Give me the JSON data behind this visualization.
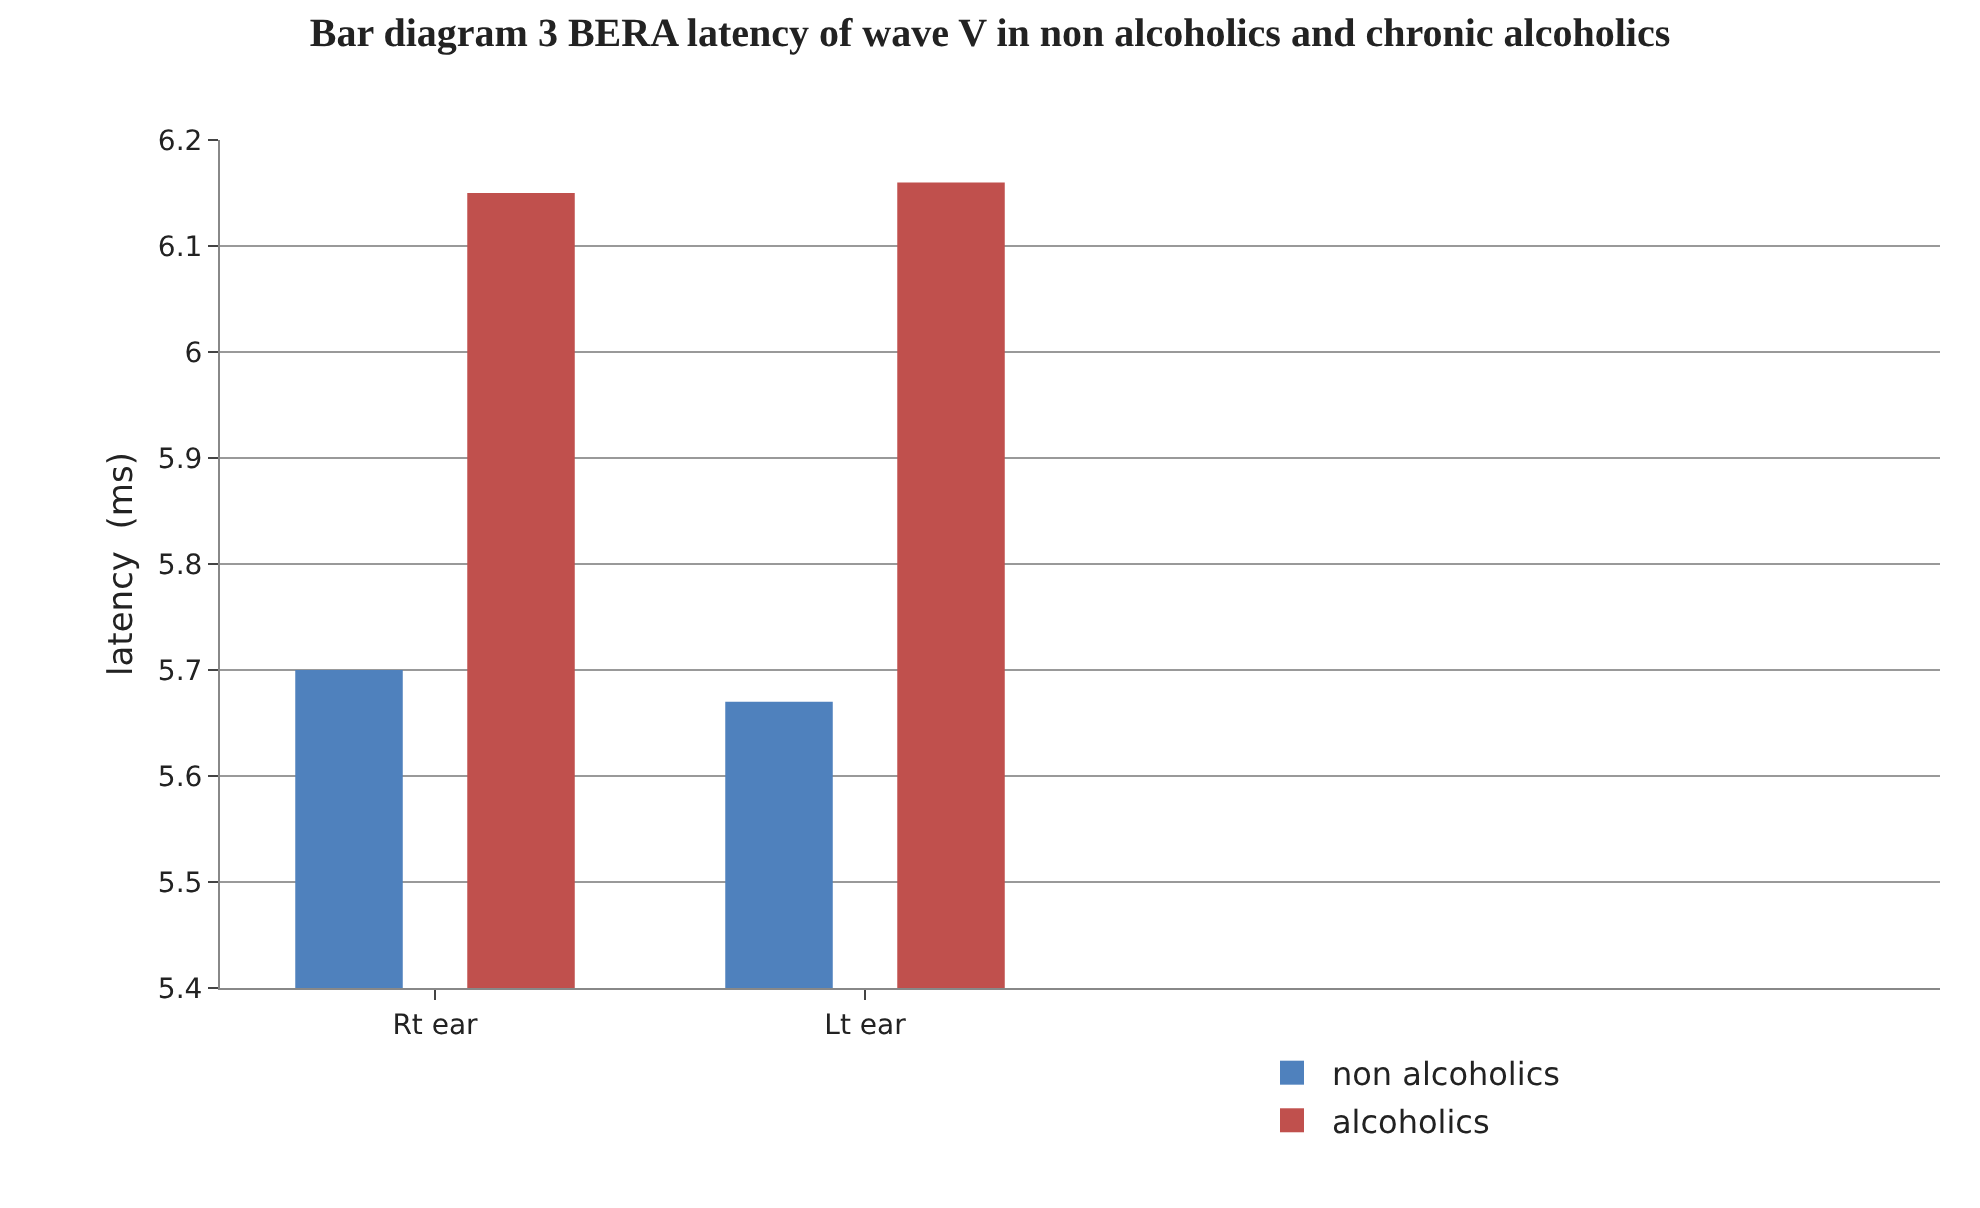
{
  "chart_data": {
    "type": "bar",
    "title": "Bar diagram 3 BERA latency of wave V in non alcoholics and chronic alcoholics",
    "ylabel": "latency  (ms)",
    "categories": [
      "Rt ear",
      "Lt ear",
      null,
      null
    ],
    "series": [
      {
        "name": "non alcoholics",
        "color": "#4f81bd",
        "values": [
          5.7,
          5.67,
          null,
          null
        ]
      },
      {
        "name": "alcoholics",
        "color": "#c0504d",
        "values": [
          6.15,
          6.16,
          null,
          null
        ]
      }
    ],
    "ylim": [
      5.4,
      6.2
    ],
    "yticks": [
      5.4,
      5.5,
      5.6,
      5.7,
      5.8,
      5.9,
      6,
      6.1,
      6.2
    ],
    "grid": "y",
    "legend": "bottom"
  }
}
